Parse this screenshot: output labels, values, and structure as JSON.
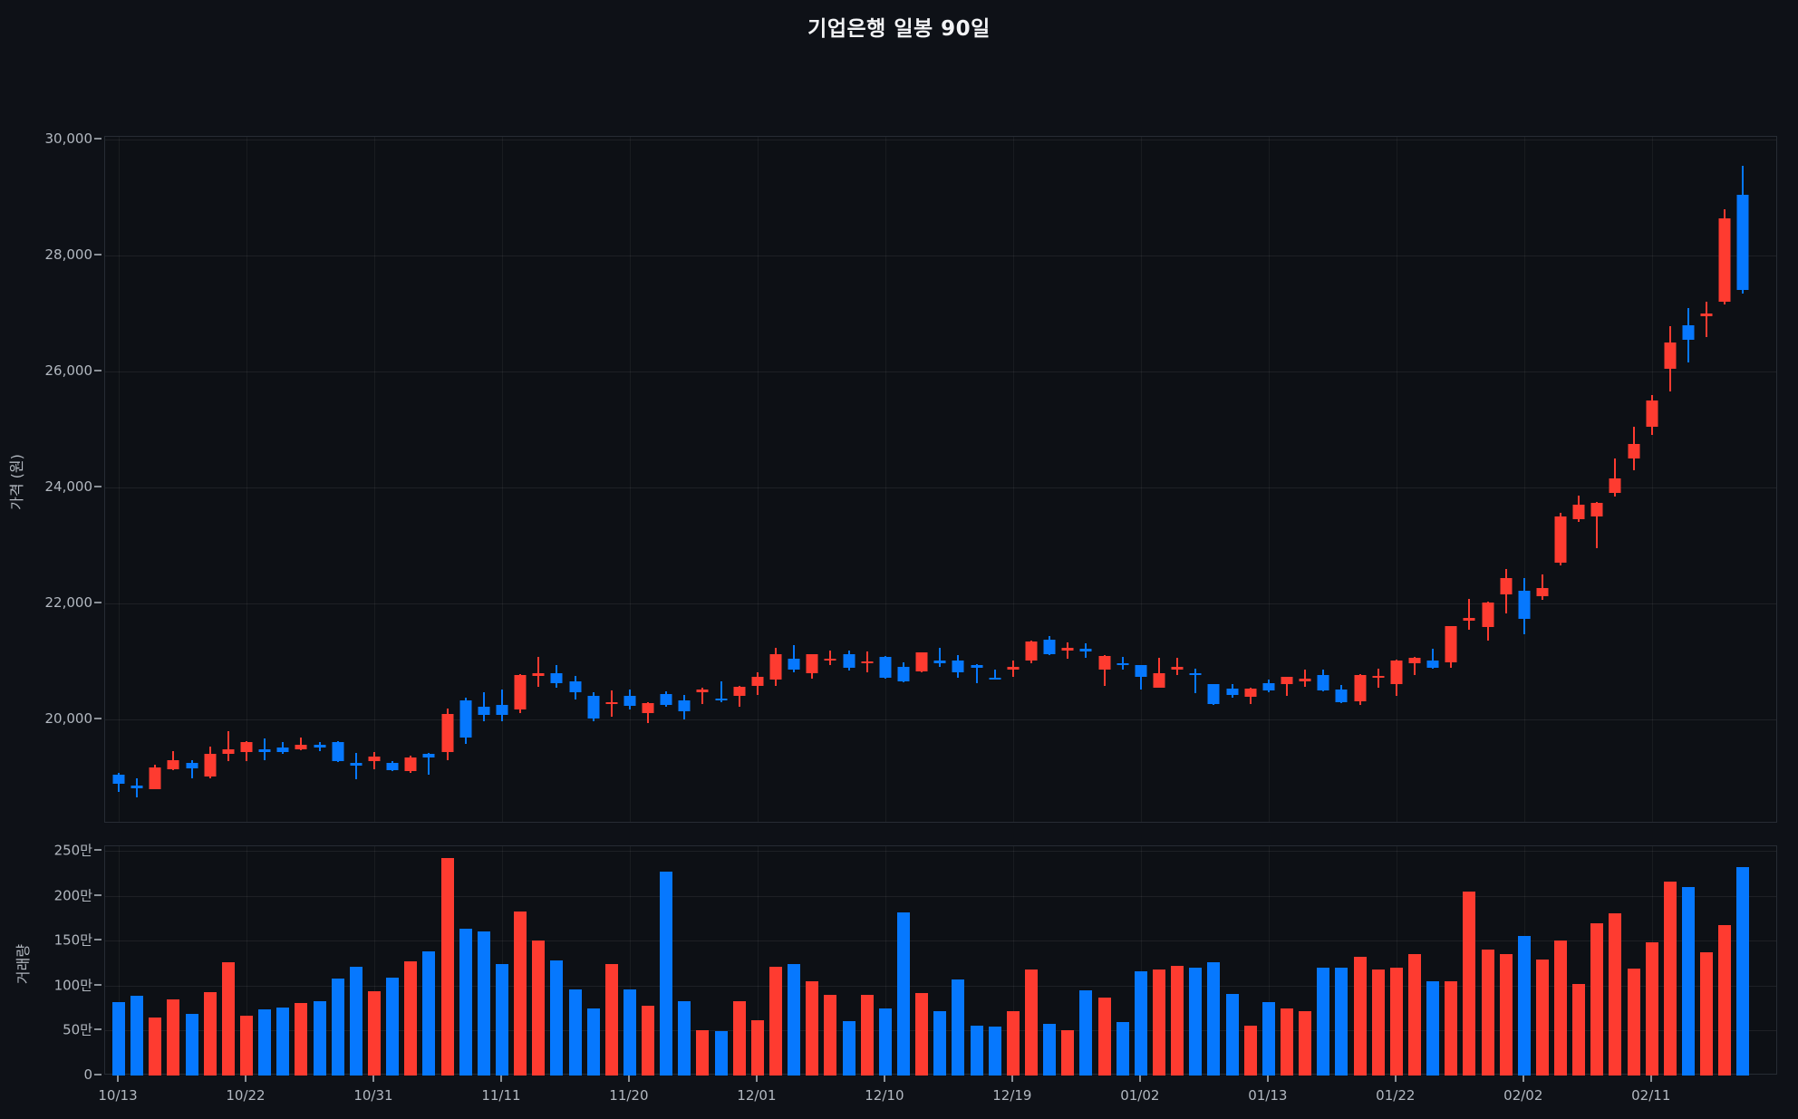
{
  "title": "기업은행 일봉 90일",
  "colors": {
    "background": "#0e1117",
    "up": "#fe3b30",
    "down": "#0678fe",
    "grid": "#20252d",
    "tick_text": "#b2b8c0",
    "title_text": "#f2f3f5"
  },
  "price_axis": {
    "title": "가격 (원)",
    "ticks": [
      {
        "label": "30,000",
        "value": 30000
      },
      {
        "label": "28,000",
        "value": 28000
      },
      {
        "label": "26,000",
        "value": 26000
      },
      {
        "label": "24,000",
        "value": 24000
      },
      {
        "label": "22,000",
        "value": 22000
      },
      {
        "label": "20,000",
        "value": 20000
      }
    ]
  },
  "volume_axis": {
    "title": "거래량",
    "ticks": [
      {
        "label": "250만",
        "value": 250
      },
      {
        "label": "200만",
        "value": 200
      },
      {
        "label": "150만",
        "value": 150
      },
      {
        "label": "100만",
        "value": 100
      },
      {
        "label": "50만",
        "value": 50
      },
      {
        "label": "0",
        "value": 0
      }
    ]
  },
  "x_axis": {
    "tick_labels": [
      "10/13",
      "10/22",
      "10/31",
      "11/11",
      "11/20",
      "12/01",
      "12/10",
      "12/19",
      "01/02",
      "01/13",
      "01/22",
      "02/02",
      "02/11"
    ],
    "tick_indices": [
      0,
      7,
      14,
      21,
      28,
      35,
      42,
      49,
      56,
      63,
      70,
      77,
      84
    ]
  },
  "chart_data": {
    "type": "candlestick",
    "title": "기업은행 일봉 90일",
    "ylabel_price": "가격 (원)",
    "ylabel_volume": "거래량",
    "price_ylim": [
      18200,
      30050
    ],
    "volume_ylim_man": [
      0,
      255
    ],
    "up_color_convention": "red = close >= open (Korean), blue = down",
    "candles_ohlcv": [
      [
        19050,
        19070,
        18750,
        18890,
        82
      ],
      [
        18860,
        18980,
        18660,
        18810,
        89
      ],
      [
        18800,
        19220,
        18790,
        19170,
        65
      ],
      [
        19140,
        19450,
        19120,
        19290,
        85
      ],
      [
        19250,
        19300,
        18980,
        19160,
        69
      ],
      [
        19010,
        19530,
        18980,
        19400,
        93
      ],
      [
        19410,
        19800,
        19280,
        19480,
        126
      ],
      [
        19440,
        19620,
        19280,
        19600,
        67
      ],
      [
        19480,
        19670,
        19300,
        19440,
        74
      ],
      [
        19520,
        19600,
        19400,
        19440,
        76
      ],
      [
        19480,
        19680,
        19470,
        19560,
        81
      ],
      [
        19560,
        19610,
        19450,
        19520,
        83
      ],
      [
        19610,
        19630,
        19260,
        19280,
        108
      ],
      [
        19240,
        19420,
        18960,
        19200,
        121
      ],
      [
        19280,
        19440,
        19140,
        19360,
        94
      ],
      [
        19250,
        19280,
        19100,
        19130,
        109
      ],
      [
        19110,
        19370,
        19080,
        19340,
        127
      ],
      [
        19400,
        19420,
        19040,
        19340,
        138
      ],
      [
        19440,
        20190,
        19300,
        20090,
        242
      ],
      [
        20330,
        20380,
        19580,
        19690,
        163
      ],
      [
        20220,
        20470,
        19970,
        20080,
        160
      ],
      [
        20250,
        20520,
        19970,
        20080,
        124
      ],
      [
        20170,
        20780,
        20110,
        20770,
        182
      ],
      [
        20750,
        21080,
        20560,
        20790,
        150
      ],
      [
        20790,
        20930,
        20550,
        20630,
        128
      ],
      [
        20660,
        20750,
        20340,
        20470,
        96
      ],
      [
        20400,
        20470,
        19970,
        20020,
        75
      ],
      [
        20270,
        20500,
        20040,
        20300,
        124
      ],
      [
        20400,
        20520,
        20170,
        20230,
        96
      ],
      [
        20110,
        20290,
        19930,
        20280,
        78
      ],
      [
        20430,
        20490,
        20210,
        20250,
        227
      ],
      [
        20320,
        20420,
        20000,
        20140,
        83
      ],
      [
        20480,
        20550,
        20260,
        20510,
        50
      ],
      [
        20360,
        20650,
        20290,
        20330,
        49
      ],
      [
        20400,
        20570,
        20210,
        20560,
        83
      ],
      [
        20580,
        20810,
        20420,
        20730,
        61
      ],
      [
        20680,
        21230,
        20580,
        21120,
        121
      ],
      [
        21040,
        21280,
        20810,
        20850,
        124
      ],
      [
        20790,
        21130,
        20700,
        21120,
        105
      ],
      [
        21010,
        21180,
        20940,
        21050,
        90
      ],
      [
        21120,
        21190,
        20840,
        20890,
        60
      ],
      [
        20960,
        21170,
        20810,
        21000,
        90
      ],
      [
        21080,
        21090,
        20700,
        20720,
        75
      ],
      [
        20910,
        20990,
        20640,
        20650,
        181
      ],
      [
        20820,
        21160,
        20810,
        21150,
        92
      ],
      [
        21010,
        21240,
        20910,
        20980,
        72
      ],
      [
        21020,
        21100,
        20720,
        20810,
        107
      ],
      [
        20930,
        20950,
        20630,
        20900,
        55
      ],
      [
        20720,
        20850,
        20690,
        20690,
        54
      ],
      [
        20860,
        21020,
        20730,
        20900,
        72
      ],
      [
        21020,
        21360,
        20970,
        21350,
        118
      ],
      [
        21370,
        21440,
        21110,
        21120,
        57
      ],
      [
        21200,
        21330,
        21040,
        21230,
        50
      ],
      [
        21210,
        21310,
        21060,
        21180,
        95
      ],
      [
        20850,
        21100,
        20570,
        21090,
        87
      ],
      [
        20970,
        21070,
        20850,
        20940,
        59
      ],
      [
        20930,
        20940,
        20520,
        20730,
        116
      ],
      [
        20550,
        21060,
        20540,
        20800,
        118
      ],
      [
        20870,
        21060,
        20770,
        20900,
        122
      ],
      [
        20800,
        20880,
        20450,
        20770,
        120
      ],
      [
        20600,
        20610,
        20240,
        20260,
        126
      ],
      [
        20530,
        20600,
        20380,
        20420,
        91
      ],
      [
        20390,
        20540,
        20260,
        20530,
        55
      ],
      [
        20630,
        20690,
        20470,
        20500,
        82
      ],
      [
        20610,
        20740,
        20400,
        20730,
        75
      ],
      [
        20670,
        20850,
        20560,
        20700,
        72
      ],
      [
        20770,
        20850,
        20490,
        20500,
        120
      ],
      [
        20510,
        20590,
        20280,
        20300,
        120
      ],
      [
        20310,
        20780,
        20250,
        20770,
        132
      ],
      [
        20710,
        20870,
        20550,
        20750,
        118
      ],
      [
        20610,
        21030,
        20400,
        21020,
        120
      ],
      [
        20960,
        21070,
        20770,
        21060,
        135
      ],
      [
        21010,
        21220,
        20880,
        20890,
        105
      ],
      [
        20990,
        21610,
        20890,
        21610,
        105
      ],
      [
        21700,
        22080,
        21550,
        21750,
        205
      ],
      [
        21590,
        22030,
        21350,
        22020,
        140
      ],
      [
        22160,
        22600,
        21820,
        22430,
        135
      ],
      [
        22210,
        22430,
        21470,
        21740,
        155
      ],
      [
        22120,
        22500,
        22060,
        22270,
        129
      ],
      [
        22700,
        23570,
        22650,
        23500,
        150
      ],
      [
        23450,
        23860,
        23400,
        23700,
        102
      ],
      [
        23500,
        23750,
        22950,
        23730,
        169
      ],
      [
        23900,
        24500,
        23850,
        24150,
        180
      ],
      [
        24500,
        25050,
        24300,
        24750,
        119
      ],
      [
        25050,
        25600,
        24900,
        25500,
        148
      ],
      [
        26050,
        26780,
        25650,
        26500,
        216
      ],
      [
        26800,
        27100,
        26150,
        26550,
        210
      ],
      [
        26950,
        27200,
        26600,
        27000,
        137
      ],
      [
        27200,
        28800,
        27150,
        28650,
        167
      ],
      [
        29050,
        29550,
        27350,
        27400,
        232
      ]
    ]
  }
}
